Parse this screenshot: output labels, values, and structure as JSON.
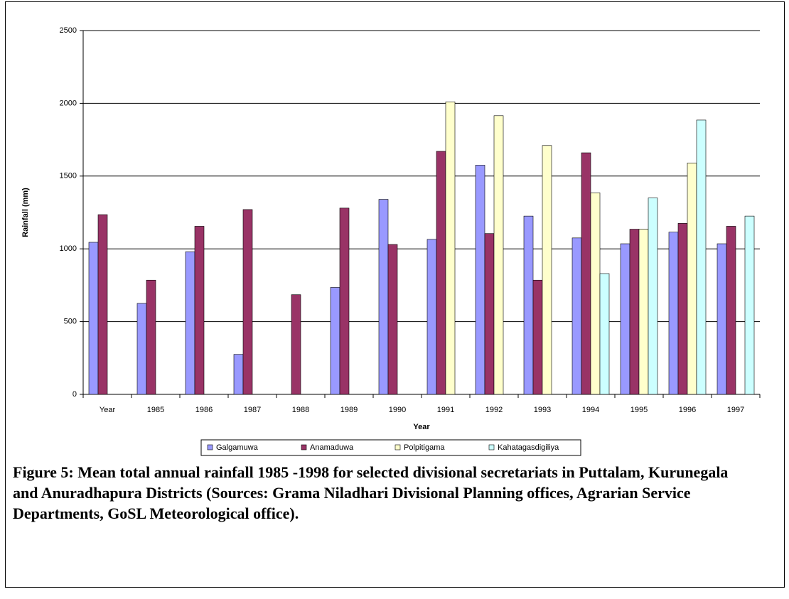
{
  "chart_data": {
    "type": "bar",
    "y_label": "Rainfall (mm)",
    "x_label": "Year",
    "categories": [
      "Year",
      "1985",
      "1986",
      "1987",
      "1988",
      "1989",
      "1990",
      "1991",
      "1992",
      "1993",
      "1994",
      "1995",
      "1996",
      "1997"
    ],
    "series": [
      {
        "name": "Galgamuwa",
        "color": "#9999ff",
        "values": [
          1045,
          625,
          980,
          275,
          null,
          735,
          1340,
          1065,
          1575,
          1225,
          1075,
          1035,
          1115,
          1035
        ]
      },
      {
        "name": "Anamaduwa",
        "color": "#993366",
        "values": [
          1235,
          785,
          1155,
          1270,
          685,
          1280,
          1030,
          1670,
          1105,
          785,
          1660,
          1135,
          1175,
          1155
        ]
      },
      {
        "name": "Polpitigama",
        "color": "#ffffcc",
        "values": [
          null,
          null,
          null,
          null,
          null,
          null,
          null,
          2010,
          1915,
          1710,
          1385,
          1135,
          1590,
          null
        ]
      },
      {
        "name": "Kahatagasdigiliya",
        "color": "#ccffff",
        "values": [
          null,
          null,
          null,
          null,
          null,
          null,
          null,
          null,
          null,
          null,
          830,
          1350,
          1885,
          1225
        ]
      }
    ],
    "ylim": [
      0,
      2500
    ],
    "yticks": [
      0,
      500,
      1000,
      1500,
      2000,
      2500
    ],
    "grid": true,
    "legend": "bottom",
    "caption": "Figure 5: Mean total annual rainfall 1985 -1998 for selected divisional secretariats in Puttalam, Kurunegala and Anuradhapura Districts (Sources: Grama Niladhari Divisional Planning offices, Agrarian Service Departments, GoSL Meteorological office)."
  }
}
